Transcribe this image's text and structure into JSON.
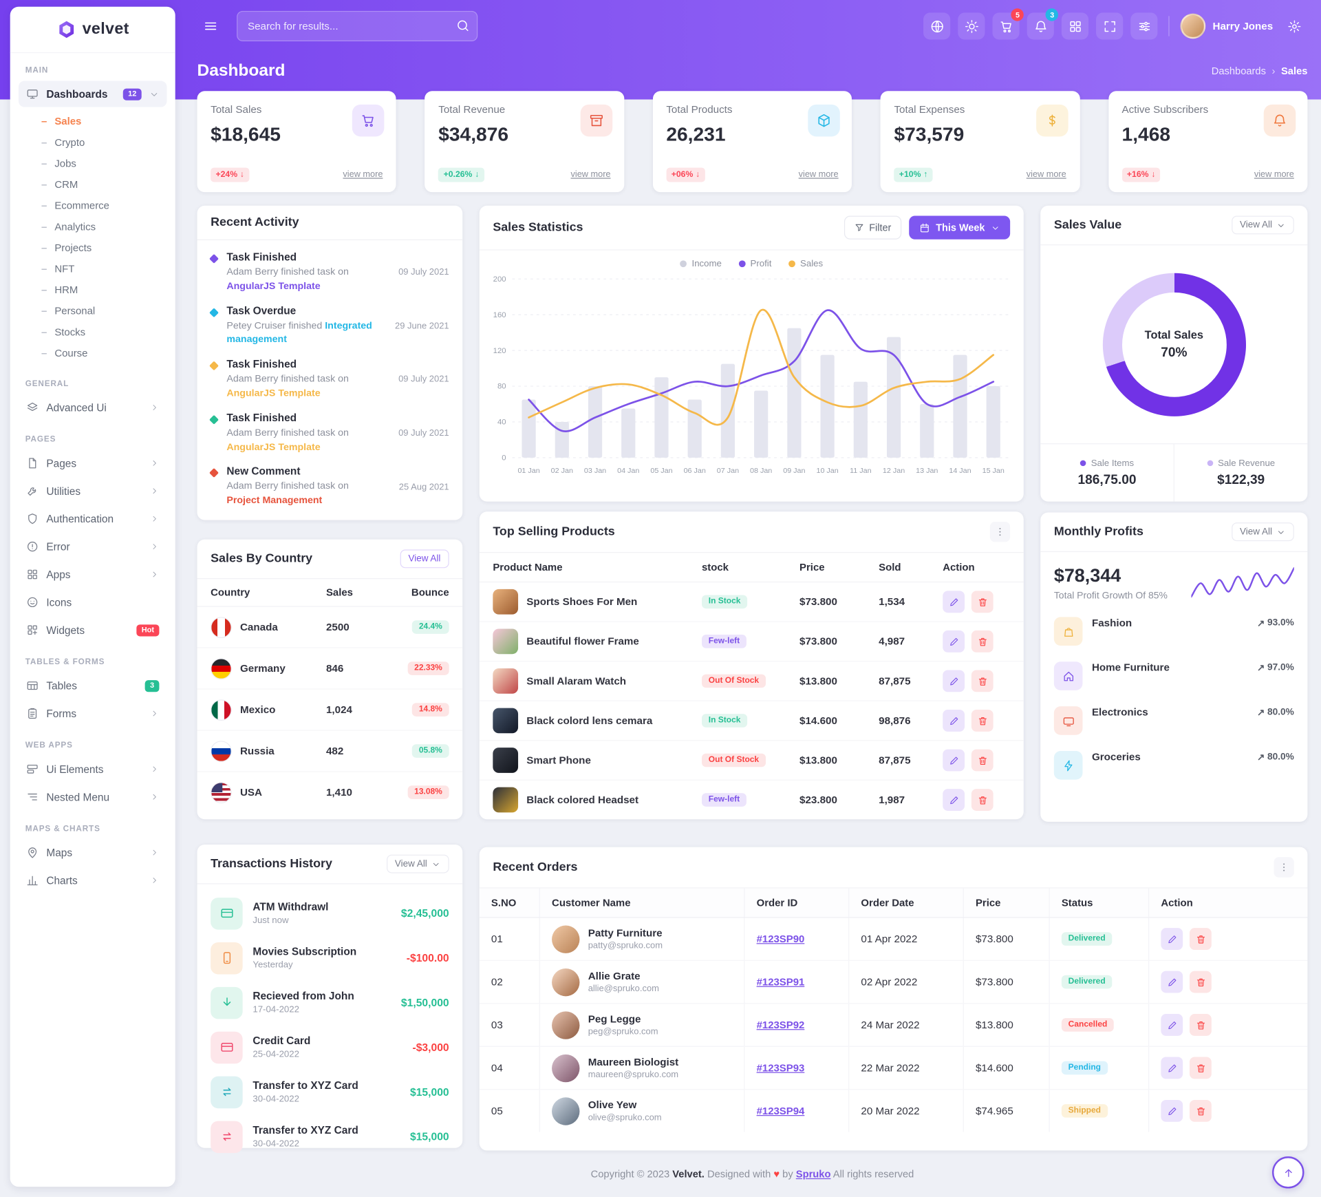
{
  "brand": "velvet",
  "header": {
    "search_placeholder": "Search for results...",
    "cart_badge": "5",
    "bell_badge": "3",
    "user_name": "Harry Jones"
  },
  "page": {
    "title": "Dashboard",
    "breadcrumb_parent": "Dashboards",
    "breadcrumb_sep": "›",
    "breadcrumb_current": "Sales"
  },
  "sidebar": {
    "section_main": "MAIN",
    "dashboards_label": "Dashboards",
    "dashboards_badge": "12",
    "dash_children": [
      "Sales",
      "Crypto",
      "Jobs",
      "CRM",
      "Ecommerce",
      "Analytics",
      "Projects",
      "NFT",
      "HRM",
      "Personal",
      "Stocks",
      "Course"
    ],
    "section_general": "GENERAL",
    "advanced_ui": "Advanced Ui",
    "section_pages": "PAGES",
    "pages": "Pages",
    "utilities": "Utilities",
    "authentication": "Authentication",
    "error": "Error",
    "apps": "Apps",
    "icons": "Icons",
    "widgets": "Widgets",
    "widgets_badge": "Hot",
    "section_tables": "TABLES & FORMS",
    "tables": "Tables",
    "tables_badge": "3",
    "forms": "Forms",
    "section_webapps": "WEB APPS",
    "ui_elements": "Ui Elements",
    "nested_menu": "Nested Menu",
    "section_maps": "MAPS & CHARTS",
    "maps": "Maps",
    "charts": "Charts"
  },
  "stats": [
    {
      "label": "Total Sales",
      "value": "$18,645",
      "badge": "+24%",
      "arrow": "↓",
      "view": "view more"
    },
    {
      "label": "Total Revenue",
      "value": "$34,876",
      "badge": "+0.26%",
      "arrow": "↓",
      "view": "view more"
    },
    {
      "label": "Total Products",
      "value": "26,231",
      "badge": "+06%",
      "arrow": "↓",
      "view": "view more"
    },
    {
      "label": "Total Expenses",
      "value": "$73,579",
      "badge": "+10%",
      "arrow": "↑",
      "view": "view more"
    },
    {
      "label": "Active Subscribers",
      "value": "1,468",
      "badge": "+16%",
      "arrow": "↓",
      "view": "view more"
    }
  ],
  "recent_activity": {
    "title": "Recent Activity",
    "items": [
      {
        "title": "Task Finished",
        "text": "Adam Berry finished task on",
        "keyword": "AngularJS Template",
        "date": "09 July 2021"
      },
      {
        "title": "Task Overdue",
        "text": "Petey Cruiser finished",
        "keyword": "Integrated management",
        "date": "29 June 2021"
      },
      {
        "title": "Task Finished",
        "text": "Adam Berry finished task on",
        "keyword": "AngularJS Template",
        "date": "09 July 2021"
      },
      {
        "title": "Task Finished",
        "text": "Adam Berry finished task on",
        "keyword": "AngularJS Template",
        "date": "09 July 2021"
      },
      {
        "title": "New Comment",
        "text": "Adam Berry finished task on",
        "keyword": "Project Management",
        "date": "25 Aug 2021"
      }
    ]
  },
  "sales_statistics": {
    "title": "Sales Statistics",
    "filter_label": "Filter",
    "range_label": "This Week",
    "chart_data": {
      "type": "line",
      "x": [
        "01 Jan",
        "02 Jan",
        "03 Jan",
        "04 Jan",
        "05 Jan",
        "06 Jan",
        "07 Jan",
        "08 Jan",
        "09 Jan",
        "10 Jan",
        "11 Jan",
        "12 Jan",
        "13 Jan",
        "14 Jan",
        "15 Jan"
      ],
      "ylim": [
        0,
        200
      ],
      "yticks": [
        0,
        40,
        80,
        120,
        160,
        200
      ],
      "legend_position": "top",
      "series": [
        {
          "name": "Income",
          "type": "bar",
          "color": "#e4e5ef",
          "values": [
            65,
            40,
            80,
            55,
            90,
            65,
            105,
            75,
            145,
            115,
            85,
            135,
            60,
            115,
            80
          ]
        },
        {
          "name": "Profit",
          "type": "line",
          "color": "#7c52e8",
          "values": [
            65,
            30,
            45,
            60,
            72,
            85,
            80,
            92,
            108,
            165,
            122,
            115,
            60,
            68,
            85
          ]
        },
        {
          "name": "Sales",
          "type": "line",
          "color": "#f5b849",
          "values": [
            45,
            62,
            78,
            82,
            70,
            50,
            45,
            165,
            90,
            62,
            58,
            78,
            85,
            88,
            115
          ]
        }
      ]
    }
  },
  "sales_value": {
    "title": "Sales Value",
    "view_all": "View All",
    "center_label": "Total Sales",
    "percent": "70%",
    "percent_value": 70,
    "stats": [
      {
        "label": "Sale Items",
        "value": "186,75.00"
      },
      {
        "label": "Sale Revenue",
        "value": "$122,39"
      }
    ]
  },
  "top_products": {
    "title": "Top Selling Products",
    "headers": [
      "Product Name",
      "stock",
      "Price",
      "Sold",
      "Action"
    ],
    "rows": [
      {
        "name": "Sports Shoes For Men",
        "stock": "In Stock",
        "price": "$73.800",
        "sold": "1,534"
      },
      {
        "name": "Beautiful flower Frame",
        "stock": "Few-left",
        "price": "$73.800",
        "sold": "4,987"
      },
      {
        "name": "Small Alaram Watch",
        "stock": "Out Of Stock",
        "price": "$13.800",
        "sold": "87,875"
      },
      {
        "name": "Black colord lens cemara",
        "stock": "In Stock",
        "price": "$14.600",
        "sold": "98,876"
      },
      {
        "name": "Smart Phone",
        "stock": "Out Of Stock",
        "price": "$13.800",
        "sold": "87,875"
      },
      {
        "name": "Black colored Headset",
        "stock": "Few-left",
        "price": "$23.800",
        "sold": "1,987"
      }
    ]
  },
  "monthly_profits": {
    "title": "Monthly Profits",
    "view_all": "View All",
    "amount": "$78,344",
    "subtitle": "Total Profit Growth Of 85%",
    "spark": [
      32,
      48,
      35,
      52,
      38,
      56,
      40,
      60,
      44,
      58,
      48,
      66
    ],
    "items": [
      {
        "label": "Fashion",
        "arrow": "↗",
        "pct": "93.0%",
        "value": 93
      },
      {
        "label": "Home Furniture",
        "arrow": "↗",
        "pct": "97.0%",
        "value": 97
      },
      {
        "label": "Electronics",
        "arrow": "↗",
        "pct": "80.0%",
        "value": 80
      },
      {
        "label": "Groceries",
        "arrow": "↗",
        "pct": "80.0%",
        "value": 80
      }
    ]
  },
  "sales_by_country": {
    "title": "Sales By Country",
    "view_all": "View All",
    "headers": [
      "Country",
      "Sales",
      "Bounce"
    ],
    "rows": [
      {
        "country": "Canada",
        "sales": "2500",
        "bounce": "24.4%"
      },
      {
        "country": "Germany",
        "sales": "846",
        "bounce": "22.33%"
      },
      {
        "country": "Mexico",
        "sales": "1,024",
        "bounce": "14.8%"
      },
      {
        "country": "Russia",
        "sales": "482",
        "bounce": "05.8%"
      },
      {
        "country": "USA",
        "sales": "1,410",
        "bounce": "13.08%"
      }
    ]
  },
  "transactions": {
    "title": "Transactions History",
    "view_all": "View All",
    "items": [
      {
        "name": "ATM Withdrawl",
        "date": "Just now",
        "amount": "$2,45,000"
      },
      {
        "name": "Movies Subscription",
        "date": "Yesterday",
        "amount": "-$100.00"
      },
      {
        "name": "Recieved from John",
        "date": "17-04-2022",
        "amount": "$1,50,000"
      },
      {
        "name": "Credit Card",
        "date": "25-04-2022",
        "amount": "-$3,000"
      },
      {
        "name": "Transfer to XYZ Card",
        "date": "30-04-2022",
        "amount": "$15,000"
      },
      {
        "name": "Transfer to XYZ Card",
        "date": "30-04-2022",
        "amount": "$15,000"
      }
    ]
  },
  "recent_orders": {
    "title": "Recent Orders",
    "headers": [
      "S.NO",
      "Customer Name",
      "Order ID",
      "Order Date",
      "Price",
      "Status",
      "Action"
    ],
    "rows": [
      {
        "sno": "01",
        "name": "Patty Furniture",
        "email": "patty@spruko.com",
        "order_id": "#123SP90",
        "date": "01 Apr 2022",
        "price": "$73.800",
        "status": "Delivered"
      },
      {
        "sno": "02",
        "name": "Allie Grate",
        "email": "allie@spruko.com",
        "order_id": "#123SP91",
        "date": "02 Apr 2022",
        "price": "$73.800",
        "status": "Delivered"
      },
      {
        "sno": "03",
        "name": "Peg Legge",
        "email": "peg@spruko.com",
        "order_id": "#123SP92",
        "date": "24 Mar 2022",
        "price": "$13.800",
        "status": "Cancelled"
      },
      {
        "sno": "04",
        "name": "Maureen Biologist",
        "email": "maureen@spruko.com",
        "order_id": "#123SP93",
        "date": "22 Mar 2022",
        "price": "$14.600",
        "status": "Pending"
      },
      {
        "sno": "05",
        "name": "Olive Yew",
        "email": "olive@spruko.com",
        "order_id": "#123SP94",
        "date": "20 Mar 2022",
        "price": "$74.965",
        "status": "Shipped"
      }
    ]
  },
  "footer": {
    "pre": "Copyright © 2023",
    "brand": "Velvet.",
    "mid": "Designed with",
    "heart": "♥",
    "by": "by",
    "spruko": "Spruko",
    "post": "All rights reserved"
  }
}
